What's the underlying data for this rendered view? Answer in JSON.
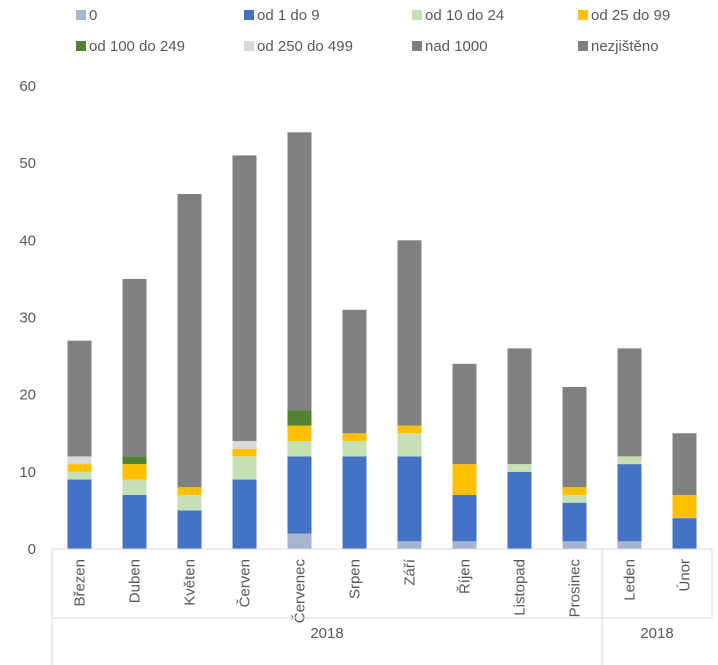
{
  "chart_data": {
    "type": "bar",
    "stacked": true,
    "categories": [
      "Březen",
      "Duben",
      "Květen",
      "Červen",
      "Červenec",
      "Srpen",
      "Září",
      "Říjen",
      "Listopad",
      "Prosinec",
      "Leden",
      "Únor"
    ],
    "category_groups": [
      {
        "label": "2018",
        "count": 10
      },
      {
        "label": "2018",
        "count": 2
      }
    ],
    "ylim": [
      0,
      60
    ],
    "yticks": [
      0,
      10,
      20,
      30,
      40,
      50,
      60
    ],
    "grid": false,
    "legend_position": "top",
    "series": [
      {
        "name": "0",
        "color": "#A5B4CF",
        "values": [
          0,
          0,
          0,
          0,
          2,
          0,
          1,
          1,
          0,
          1,
          1,
          0
        ]
      },
      {
        "name": "od 1 do 9",
        "color": "#4472C4",
        "values": [
          9,
          7,
          5,
          9,
          10,
          12,
          11,
          6,
          10,
          5,
          10,
          4
        ]
      },
      {
        "name": "od 10 do 24",
        "color": "#C5E0B4",
        "values": [
          1,
          2,
          2,
          3,
          2,
          2,
          3,
          0,
          1,
          1,
          1,
          0
        ]
      },
      {
        "name": "od 25 do 99",
        "color": "#FFC000",
        "values": [
          1,
          2,
          1,
          1,
          2,
          1,
          1,
          4,
          0,
          1,
          0,
          3
        ]
      },
      {
        "name": "od 100 do 249",
        "color": "#548235",
        "values": [
          0,
          1,
          0,
          0,
          2,
          0,
          0,
          0,
          0,
          0,
          0,
          0
        ]
      },
      {
        "name": "od 250 do 499",
        "color": "#D9D9D9",
        "values": [
          1,
          0,
          0,
          1,
          0,
          0,
          0,
          0,
          0,
          0,
          0,
          0
        ]
      },
      {
        "name": "nad 1000",
        "color": "#7F7F7F",
        "values": [
          0,
          0,
          0,
          0,
          0,
          0,
          0,
          0,
          0,
          0,
          0,
          0
        ]
      },
      {
        "name": "nezjištěno",
        "color": "#808080",
        "values": [
          15,
          23,
          38,
          37,
          36,
          16,
          24,
          13,
          15,
          13,
          14,
          8
        ]
      }
    ]
  }
}
